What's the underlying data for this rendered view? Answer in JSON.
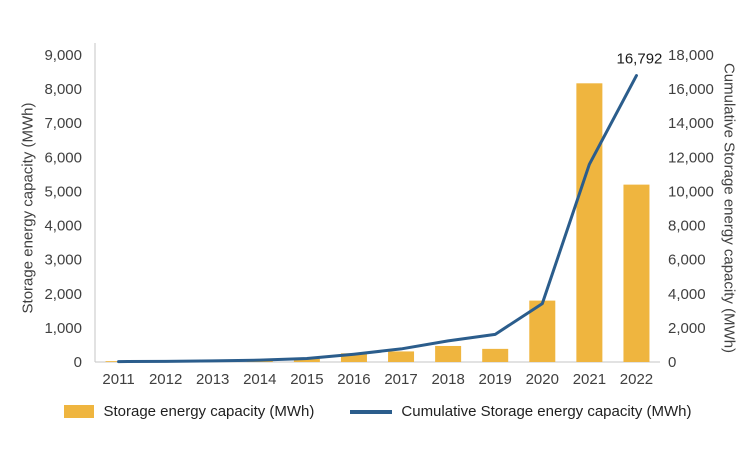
{
  "chart_data": {
    "type": "bar",
    "subtype": "bar+line combo, dual axis",
    "categories": [
      "2011",
      "2012",
      "2013",
      "2014",
      "2015",
      "2016",
      "2017",
      "2018",
      "2019",
      "2020",
      "2021",
      "2022"
    ],
    "series": [
      {
        "name": "Storage energy capacity (MWh)",
        "type": "bar",
        "axis": "left",
        "color": "#EFB53F",
        "values": [
          25,
          15,
          25,
          42,
          95,
          255,
          310,
          470,
          385,
          1800,
          8170,
          5200
        ]
      },
      {
        "name": "Cumulative Storage energy capacity (MWh)",
        "type": "line",
        "axis": "right",
        "color": "#2B5D8C",
        "values": [
          25,
          40,
          65,
          107,
          202,
          457,
          767,
          1237,
          1622,
          3422,
          11592,
          16792
        ]
      }
    ],
    "left_axis": {
      "title": "Storage energy capacity (MWh)",
      "min": 0,
      "max": 9000,
      "step": 1000,
      "ticks": [
        "0",
        "1,000",
        "2,000",
        "3,000",
        "4,000",
        "5,000",
        "6,000",
        "7,000",
        "8,000",
        "9,000"
      ]
    },
    "right_axis": {
      "title": "Cumulative Storage energy capacity (MWh)",
      "min": 0,
      "max": 18000,
      "step": 2000,
      "ticks": [
        "0",
        "2,000",
        "4,000",
        "6,000",
        "8,000",
        "10,000",
        "12,000",
        "14,000",
        "16,000",
        "18,000"
      ]
    },
    "annotation": {
      "text": "16,792",
      "category": "2022",
      "series": "Cumulative Storage energy capacity (MWh)"
    },
    "legend": [
      {
        "label": "Storage energy capacity (MWh)",
        "swatch": "bar",
        "color": "#EFB53F"
      },
      {
        "label": "Cumulative Storage energy capacity (MWh)",
        "swatch": "line",
        "color": "#2B5D8C"
      }
    ],
    "grid": false,
    "legend_position": "bottom"
  },
  "colors": {
    "text": "#404040",
    "axis_line": "#C6C6C6",
    "background": "#FFFFFF",
    "annotation_text": "#1A1A1A"
  }
}
